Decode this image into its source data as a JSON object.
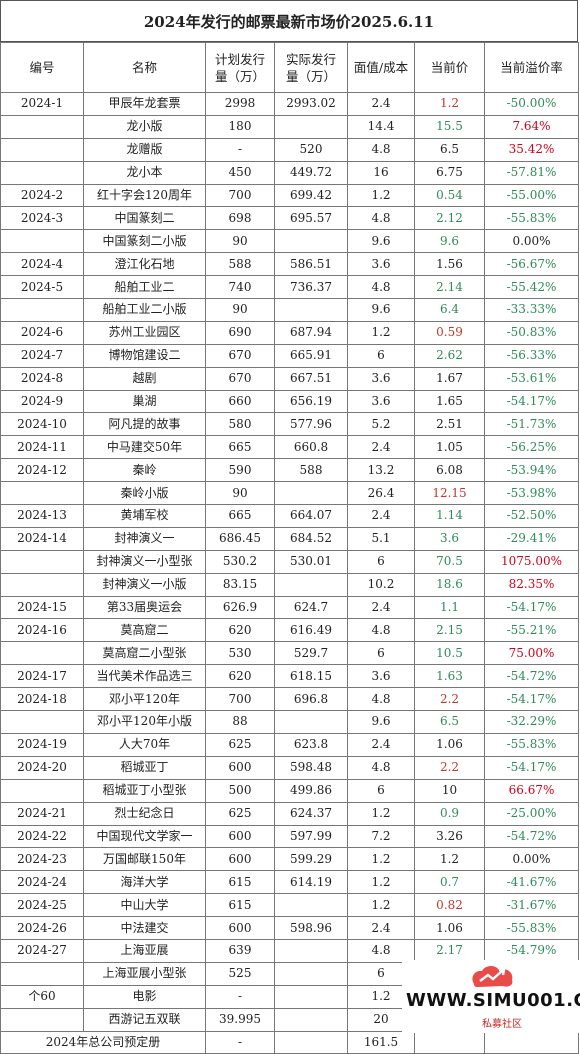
{
  "title": "2024年发行的邮票最新市场价2025.6.11",
  "headers": {
    "code": "编号",
    "name": "名称",
    "planned_line1": "计划发行",
    "planned_line2": "量（万）",
    "actual_line1": "实际发行",
    "actual_line2": "量（万）",
    "face": "面值/成本",
    "price": "当前价",
    "premium": "当前溢价率"
  },
  "rows": [
    {
      "code": "2024-1",
      "name": "甲辰年龙套票",
      "planned": "2998",
      "actual": "2993.02",
      "face": "2.4",
      "price": "1.2",
      "price_color": "red",
      "premium": "-50.00%",
      "premium_color": "neg"
    },
    {
      "code": "",
      "name": "龙小版",
      "planned": "180",
      "actual": "",
      "face": "14.4",
      "price": "15.5",
      "price_color": "green",
      "premium": "7.64%",
      "premium_color": "pos"
    },
    {
      "code": "",
      "name": "龙赠版",
      "planned": "-",
      "actual": "520",
      "face": "4.8",
      "price": "6.5",
      "price_color": "black",
      "premium": "35.42%",
      "premium_color": "pos"
    },
    {
      "code": "",
      "name": "龙小本",
      "planned": "450",
      "actual": "449.72",
      "face": "16",
      "price": "6.75",
      "price_color": "black",
      "premium": "-57.81%",
      "premium_color": "neg"
    },
    {
      "code": "2024-2",
      "name": "红十字会120周年",
      "planned": "700",
      "actual": "699.42",
      "face": "1.2",
      "price": "0.54",
      "price_color": "green",
      "premium": "-55.00%",
      "premium_color": "neg"
    },
    {
      "code": "2024-3",
      "name": "中国篆刻二",
      "planned": "698",
      "actual": "695.57",
      "face": "4.8",
      "price": "2.12",
      "price_color": "green",
      "premium": "-55.83%",
      "premium_color": "neg"
    },
    {
      "code": "",
      "name": "中国篆刻二小版",
      "planned": "90",
      "actual": "",
      "face": "9.6",
      "price": "9.6",
      "price_color": "green",
      "premium": "0.00%",
      "premium_color": "zero"
    },
    {
      "code": "2024-4",
      "name": "澄江化石地",
      "planned": "588",
      "actual": "586.51",
      "face": "3.6",
      "price": "1.56",
      "price_color": "black",
      "premium": "-56.67%",
      "premium_color": "neg"
    },
    {
      "code": "2024-5",
      "name": "船舶工业二",
      "planned": "740",
      "actual": "736.37",
      "face": "4.8",
      "price": "2.14",
      "price_color": "green",
      "premium": "-55.42%",
      "premium_color": "neg"
    },
    {
      "code": "",
      "name": "船舶工业二小版",
      "planned": "90",
      "actual": "",
      "face": "9.6",
      "price": "6.4",
      "price_color": "green",
      "premium": "-33.33%",
      "premium_color": "neg"
    },
    {
      "code": "2024-6",
      "name": "苏州工业园区",
      "planned": "690",
      "actual": "687.94",
      "face": "1.2",
      "price": "0.59",
      "price_color": "red",
      "premium": "-50.83%",
      "premium_color": "neg"
    },
    {
      "code": "2024-7",
      "name": "博物馆建设二",
      "planned": "670",
      "actual": "665.91",
      "face": "6",
      "price": "2.62",
      "price_color": "green",
      "premium": "-56.33%",
      "premium_color": "neg"
    },
    {
      "code": "2024-8",
      "name": "越剧",
      "planned": "670",
      "actual": "667.51",
      "face": "3.6",
      "price": "1.67",
      "price_color": "black",
      "premium": "-53.61%",
      "premium_color": "neg"
    },
    {
      "code": "2024-9",
      "name": "巢湖",
      "planned": "660",
      "actual": "656.19",
      "face": "3.6",
      "price": "1.65",
      "price_color": "black",
      "premium": "-54.17%",
      "premium_color": "neg"
    },
    {
      "code": "2024-10",
      "name": "阿凡提的故事",
      "planned": "580",
      "actual": "577.96",
      "face": "5.2",
      "price": "2.51",
      "price_color": "black",
      "premium": "-51.73%",
      "premium_color": "neg"
    },
    {
      "code": "2024-11",
      "name": "中马建交50年",
      "planned": "665",
      "actual": "660.8",
      "face": "2.4",
      "price": "1.05",
      "price_color": "black",
      "premium": "-56.25%",
      "premium_color": "neg"
    },
    {
      "code": "2024-12",
      "name": "秦岭",
      "planned": "590",
      "actual": "588",
      "face": "13.2",
      "price": "6.08",
      "price_color": "black",
      "premium": "-53.94%",
      "premium_color": "neg"
    },
    {
      "code": "",
      "name": "秦岭小版",
      "planned": "90",
      "actual": "",
      "face": "26.4",
      "price": "12.15",
      "price_color": "red",
      "premium": "-53.98%",
      "premium_color": "neg"
    },
    {
      "code": "2024-13",
      "name": "黄埔军校",
      "planned": "665",
      "actual": "664.07",
      "face": "2.4",
      "price": "1.14",
      "price_color": "green",
      "premium": "-52.50%",
      "premium_color": "neg"
    },
    {
      "code": "2024-14",
      "name": "封神演义一",
      "planned": "686.45",
      "actual": "684.52",
      "face": "5.1",
      "price": "3.6",
      "price_color": "green",
      "premium": "-29.41%",
      "premium_color": "neg"
    },
    {
      "code": "",
      "name": "封神演义一小型张",
      "planned": "530.2",
      "actual": "530.01",
      "face": "6",
      "price": "70.5",
      "price_color": "green",
      "premium": "1075.00%",
      "premium_color": "pos"
    },
    {
      "code": "",
      "name": "封神演义一小版",
      "planned": "83.15",
      "actual": "",
      "face": "10.2",
      "price": "18.6",
      "price_color": "green",
      "premium": "82.35%",
      "premium_color": "pos"
    },
    {
      "code": "2024-15",
      "name": "第33届奥运会",
      "planned": "626.9",
      "actual": "624.7",
      "face": "2.4",
      "price": "1.1",
      "price_color": "green",
      "premium": "-54.17%",
      "premium_color": "neg"
    },
    {
      "code": "2024-16",
      "name": "莫高窟二",
      "planned": "620",
      "actual": "616.49",
      "face": "4.8",
      "price": "2.15",
      "price_color": "green",
      "premium": "-55.21%",
      "premium_color": "neg"
    },
    {
      "code": "",
      "name": "莫高窟二小型张",
      "planned": "530",
      "actual": "529.7",
      "face": "6",
      "price": "10.5",
      "price_color": "green",
      "premium": "75.00%",
      "premium_color": "pos"
    },
    {
      "code": "2024-17",
      "name": "当代美术作品选三",
      "planned": "620",
      "actual": "618.15",
      "face": "3.6",
      "price": "1.63",
      "price_color": "green",
      "premium": "-54.72%",
      "premium_color": "neg"
    },
    {
      "code": "2024-18",
      "name": "邓小平120年",
      "planned": "700",
      "actual": "696.8",
      "face": "4.8",
      "price": "2.2",
      "price_color": "red",
      "premium": "-54.17%",
      "premium_color": "neg"
    },
    {
      "code": "",
      "name": "邓小平120年小版",
      "planned": "88",
      "actual": "",
      "face": "9.6",
      "price": "6.5",
      "price_color": "green",
      "premium": "-32.29%",
      "premium_color": "neg"
    },
    {
      "code": "2024-19",
      "name": "人大70年",
      "planned": "625",
      "actual": "623.8",
      "face": "2.4",
      "price": "1.06",
      "price_color": "black",
      "premium": "-55.83%",
      "premium_color": "neg"
    },
    {
      "code": "2024-20",
      "name": "稻城亚丁",
      "planned": "600",
      "actual": "598.48",
      "face": "4.8",
      "price": "2.2",
      "price_color": "red",
      "premium": "-54.17%",
      "premium_color": "neg"
    },
    {
      "code": "",
      "name": "稻城亚丁小型张",
      "planned": "500",
      "actual": "499.86",
      "face": "6",
      "price": "10",
      "price_color": "black",
      "premium": "66.67%",
      "premium_color": "pos"
    },
    {
      "code": "2024-21",
      "name": "烈士纪念日",
      "planned": "625",
      "actual": "624.37",
      "face": "1.2",
      "price": "0.9",
      "price_color": "green",
      "premium": "-25.00%",
      "premium_color": "neg"
    },
    {
      "code": "2024-22",
      "name": "中国现代文学家一",
      "planned": "600",
      "actual": "597.99",
      "face": "7.2",
      "price": "3.26",
      "price_color": "black",
      "premium": "-54.72%",
      "premium_color": "neg"
    },
    {
      "code": "2024-23",
      "name": "万国邮联150年",
      "planned": "600",
      "actual": "599.29",
      "face": "1.2",
      "price": "1.2",
      "price_color": "black",
      "premium": "0.00%",
      "premium_color": "zero"
    },
    {
      "code": "2024-24",
      "name": "海洋大学",
      "planned": "615",
      "actual": "614.19",
      "face": "1.2",
      "price": "0.7",
      "price_color": "green",
      "premium": "-41.67%",
      "premium_color": "neg"
    },
    {
      "code": "2024-25",
      "name": "中山大学",
      "planned": "615",
      "actual": "",
      "face": "1.2",
      "price": "0.82",
      "price_color": "red",
      "premium": "-31.67%",
      "premium_color": "neg"
    },
    {
      "code": "2024-26",
      "name": "中法建交",
      "planned": "600",
      "actual": "598.96",
      "face": "2.4",
      "price": "1.06",
      "price_color": "black",
      "premium": "-55.83%",
      "premium_color": "neg"
    },
    {
      "code": "2024-27",
      "name": "上海亚展",
      "planned": "639",
      "actual": "",
      "face": "4.8",
      "price": "2.17",
      "price_color": "green",
      "premium": "-54.79%",
      "premium_color": "neg"
    },
    {
      "code": "",
      "name": "上海亚展小型张",
      "planned": "525",
      "actual": "",
      "face": "6",
      "price": "",
      "price_color": "black",
      "premium": "",
      "premium_color": "zero"
    },
    {
      "code": "个60",
      "name": "电影",
      "planned": "-",
      "actual": "",
      "face": "1.2",
      "price": "",
      "price_color": "black",
      "premium": "",
      "premium_color": "zero"
    },
    {
      "code": "",
      "name": "西游记五双联",
      "planned": "39.995",
      "actual": "",
      "face": "20",
      "price": "",
      "price_color": "black",
      "premium": "",
      "premium_color": "zero"
    }
  ],
  "footer": {
    "label": "2024年总公司预定册",
    "planned": "-",
    "face": "161.5"
  },
  "watermark": {
    "text": "WWW.SIMU001.CN",
    "sub": "私募社区",
    "accent": "#c62828"
  }
}
